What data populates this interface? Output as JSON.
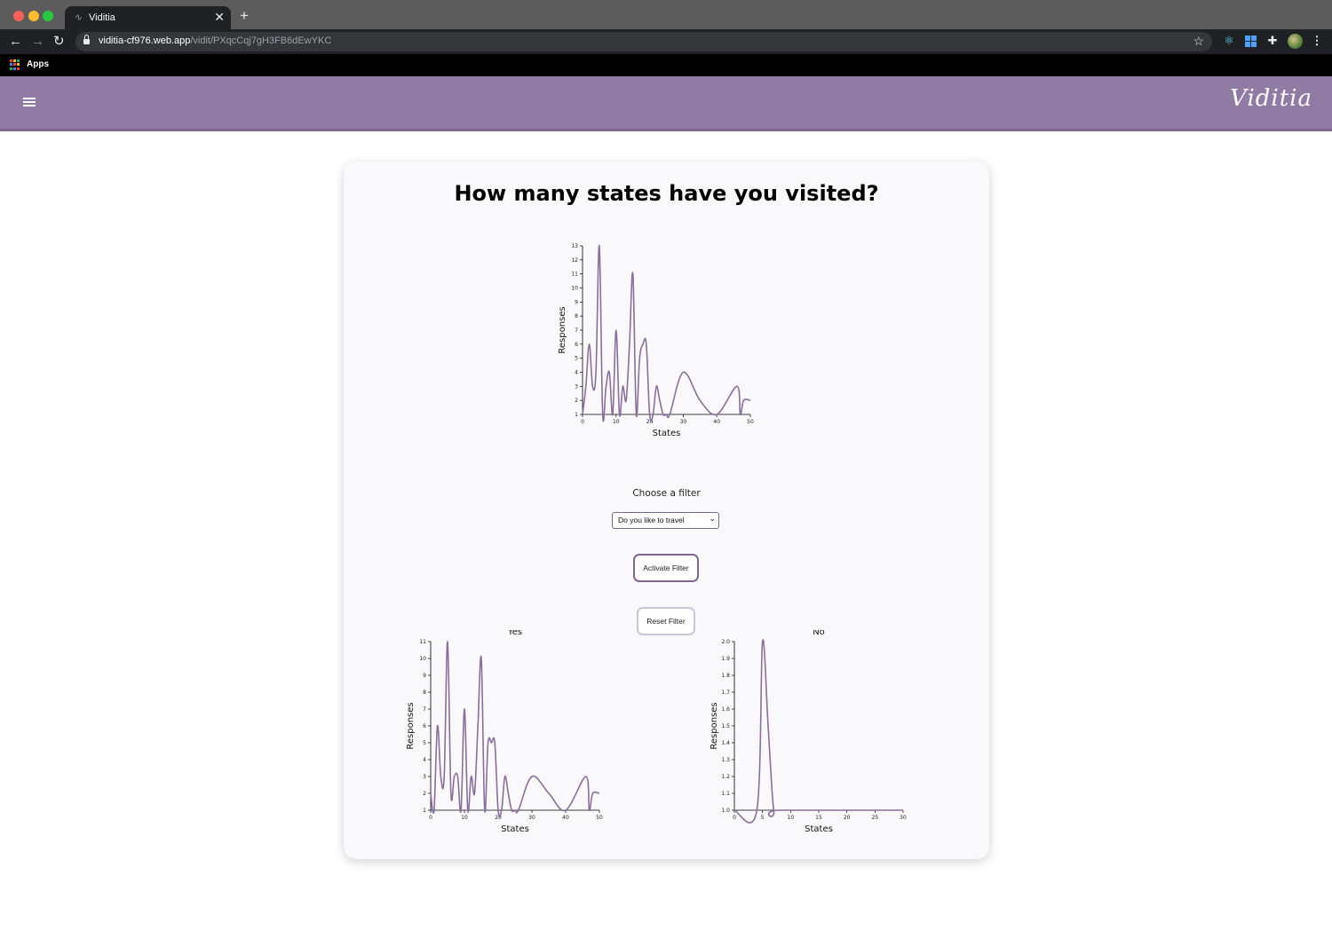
{
  "browser": {
    "tab_title": "Viditia",
    "tab_favicon": "∿",
    "close_glyph": "✕",
    "new_tab_glyph": "+",
    "back_glyph": "←",
    "forward_glyph": "→",
    "reload_glyph": "↻",
    "url_host": "viditia-cf976.web.app",
    "url_path": "/vidit/PXqcCqj7gH3FB6dEwYKC",
    "star_glyph": "☆",
    "menu_glyph": "⋮",
    "bookmarks_apps": "Apps",
    "extension_icons": [
      "react-icon",
      "windows-grid-icon",
      "puzzle-icon",
      "profile-avatar",
      "kebab-menu-icon"
    ]
  },
  "app": {
    "brand": "Viditia",
    "accent_color": "#917ba4",
    "line_color": "#8a6f9e"
  },
  "question": "How many states have you visited?",
  "filter": {
    "label": "Choose a filter",
    "selected": "Do you like to travel",
    "activate_label": "Activate Filter",
    "reset_label": "Reset Filter"
  },
  "chart_data": [
    {
      "type": "line",
      "title": "",
      "xlabel": "States",
      "ylabel": "Responses",
      "xlim": [
        0,
        50
      ],
      "ylim": [
        1,
        13
      ],
      "xticks": [
        0,
        10,
        20,
        30,
        40,
        50
      ],
      "yticks": [
        1,
        2,
        3,
        4,
        5,
        6,
        7,
        8,
        9,
        10,
        11,
        12,
        13
      ],
      "x": [
        0,
        1,
        2,
        3,
        4,
        5,
        6,
        7,
        8,
        9,
        10,
        11,
        12,
        13,
        14,
        15,
        16,
        17,
        18,
        19,
        20,
        21,
        22,
        23,
        24,
        25,
        26,
        30,
        35,
        40,
        46,
        47,
        48,
        50
      ],
      "y": [
        1,
        3,
        6,
        3,
        4,
        13,
        1,
        3,
        4,
        1,
        7,
        1,
        3,
        2,
        6,
        11,
        1,
        5,
        6,
        6,
        1,
        1,
        3,
        2,
        1,
        1,
        1,
        4,
        2,
        1,
        3,
        1,
        2,
        2
      ]
    },
    {
      "type": "line",
      "title": "Yes",
      "xlabel": "States",
      "ylabel": "Responses",
      "xlim": [
        0,
        50
      ],
      "ylim": [
        1,
        11
      ],
      "xticks": [
        0,
        10,
        20,
        30,
        40,
        50
      ],
      "yticks": [
        1,
        2,
        3,
        4,
        5,
        6,
        7,
        8,
        9,
        10,
        11
      ],
      "x": [
        0,
        1,
        2,
        3,
        4,
        5,
        6,
        7,
        8,
        9,
        10,
        11,
        12,
        13,
        14,
        15,
        16,
        17,
        18,
        19,
        20,
        21,
        22,
        23,
        24,
        25,
        26,
        30,
        35,
        40,
        46,
        47,
        48,
        50
      ],
      "y": [
        2,
        1,
        6,
        3,
        3,
        11,
        2,
        3,
        3,
        1,
        7,
        1,
        3,
        2,
        6,
        10,
        1,
        5,
        5,
        5,
        1,
        1,
        3,
        2,
        1,
        1,
        1,
        3,
        2,
        1,
        3,
        1,
        2,
        2
      ]
    },
    {
      "type": "line",
      "title": "No",
      "xlabel": "States",
      "ylabel": "Responses",
      "xlim": [
        0,
        30
      ],
      "ylim": [
        1.0,
        2.0
      ],
      "xticks": [
        0,
        5,
        10,
        15,
        20,
        25,
        30
      ],
      "yticks": [
        1.0,
        1.1,
        1.2,
        1.3,
        1.4,
        1.5,
        1.6,
        1.7,
        1.8,
        1.9,
        2.0
      ],
      "x": [
        0,
        4,
        5,
        6,
        7,
        8,
        30
      ],
      "y": [
        1,
        1,
        2,
        1.5,
        1,
        1,
        1
      ]
    }
  ]
}
